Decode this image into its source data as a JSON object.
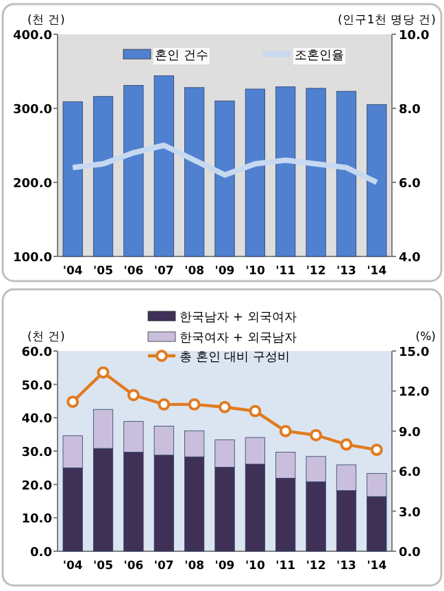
{
  "chart_data": [
    {
      "type": "bar",
      "categories": [
        "'04",
        "'05",
        "'06",
        "'07",
        "'08",
        "'09",
        "'10",
        "'11",
        "'12",
        "'13",
        "'14"
      ],
      "ylabel": "(천 건)",
      "y2label": "(인구1천 명당 건)",
      "ylim": [
        100,
        400
      ],
      "yticks": [
        {
          "value": 100,
          "label": "100.0"
        },
        {
          "value": 200,
          "label": "200.0"
        },
        {
          "value": 300,
          "label": "300.0"
        },
        {
          "value": 400,
          "label": "400.0"
        }
      ],
      "y2lim": [
        4,
        10
      ],
      "y2ticks": [
        {
          "value": 4,
          "label": "4.0"
        },
        {
          "value": 6,
          "label": "6.0"
        },
        {
          "value": 8,
          "label": "8.0"
        },
        {
          "value": 10,
          "label": "10.0"
        }
      ],
      "legend": "top",
      "series": [
        {
          "name": "혼인 건수",
          "color": "#4f81d0",
          "values": [
            309,
            316,
            331,
            344,
            328,
            310,
            326,
            329,
            327,
            323,
            305
          ]
        },
        {
          "name": "조혼인율",
          "type": "line",
          "axis": "y2",
          "color": "#c6d9f1",
          "values": [
            6.4,
            6.5,
            6.8,
            7.0,
            6.6,
            6.2,
            6.5,
            6.6,
            6.5,
            6.4,
            6.0
          ]
        }
      ]
    },
    {
      "type": "bar",
      "stacked": true,
      "categories": [
        "'04",
        "'05",
        "'06",
        "'07",
        "'08",
        "'09",
        "'10",
        "'11",
        "'12",
        "'13",
        "'14"
      ],
      "ylabel": "(천 건)",
      "y2label": "(%)",
      "ylim": [
        0,
        60
      ],
      "yticks": [
        {
          "value": 0,
          "label": "0.0"
        },
        {
          "value": 10,
          "label": "10.0"
        },
        {
          "value": 20,
          "label": "20.0"
        },
        {
          "value": 30,
          "label": "30.0"
        },
        {
          "value": 40,
          "label": "40.0"
        },
        {
          "value": 50,
          "label": "50.0"
        },
        {
          "value": 60,
          "label": "60.0"
        }
      ],
      "y2lim": [
        0,
        15
      ],
      "y2ticks": [
        {
          "value": 0,
          "label": "0.0"
        },
        {
          "value": 3,
          "label": "3.0"
        },
        {
          "value": 6,
          "label": "6.0"
        },
        {
          "value": 9,
          "label": "9.0"
        },
        {
          "value": 12,
          "label": "12.0"
        },
        {
          "value": 15,
          "label": "15.0"
        }
      ],
      "legend": "top",
      "marker": "circle",
      "series": [
        {
          "name": "한국남자 + 외국여자",
          "color": "#3f3156",
          "values": [
            25.0,
            30.8,
            29.7,
            28.8,
            28.3,
            25.2,
            26.1,
            21.9,
            20.8,
            18.2,
            16.4
          ]
        },
        {
          "name": "한국여자 + 외국남자",
          "color": "#c9bfdc",
          "values": [
            9.6,
            11.7,
            9.2,
            8.7,
            7.8,
            8.2,
            8.0,
            7.8,
            7.6,
            7.7,
            6.9
          ]
        },
        {
          "name": "총 혼인 대비 구성비",
          "type": "line",
          "axis": "y2",
          "color": "#e07b20",
          "values": [
            11.2,
            13.4,
            11.7,
            11.0,
            11.0,
            10.8,
            10.5,
            9.0,
            8.7,
            8.0,
            7.6
          ]
        }
      ]
    }
  ]
}
